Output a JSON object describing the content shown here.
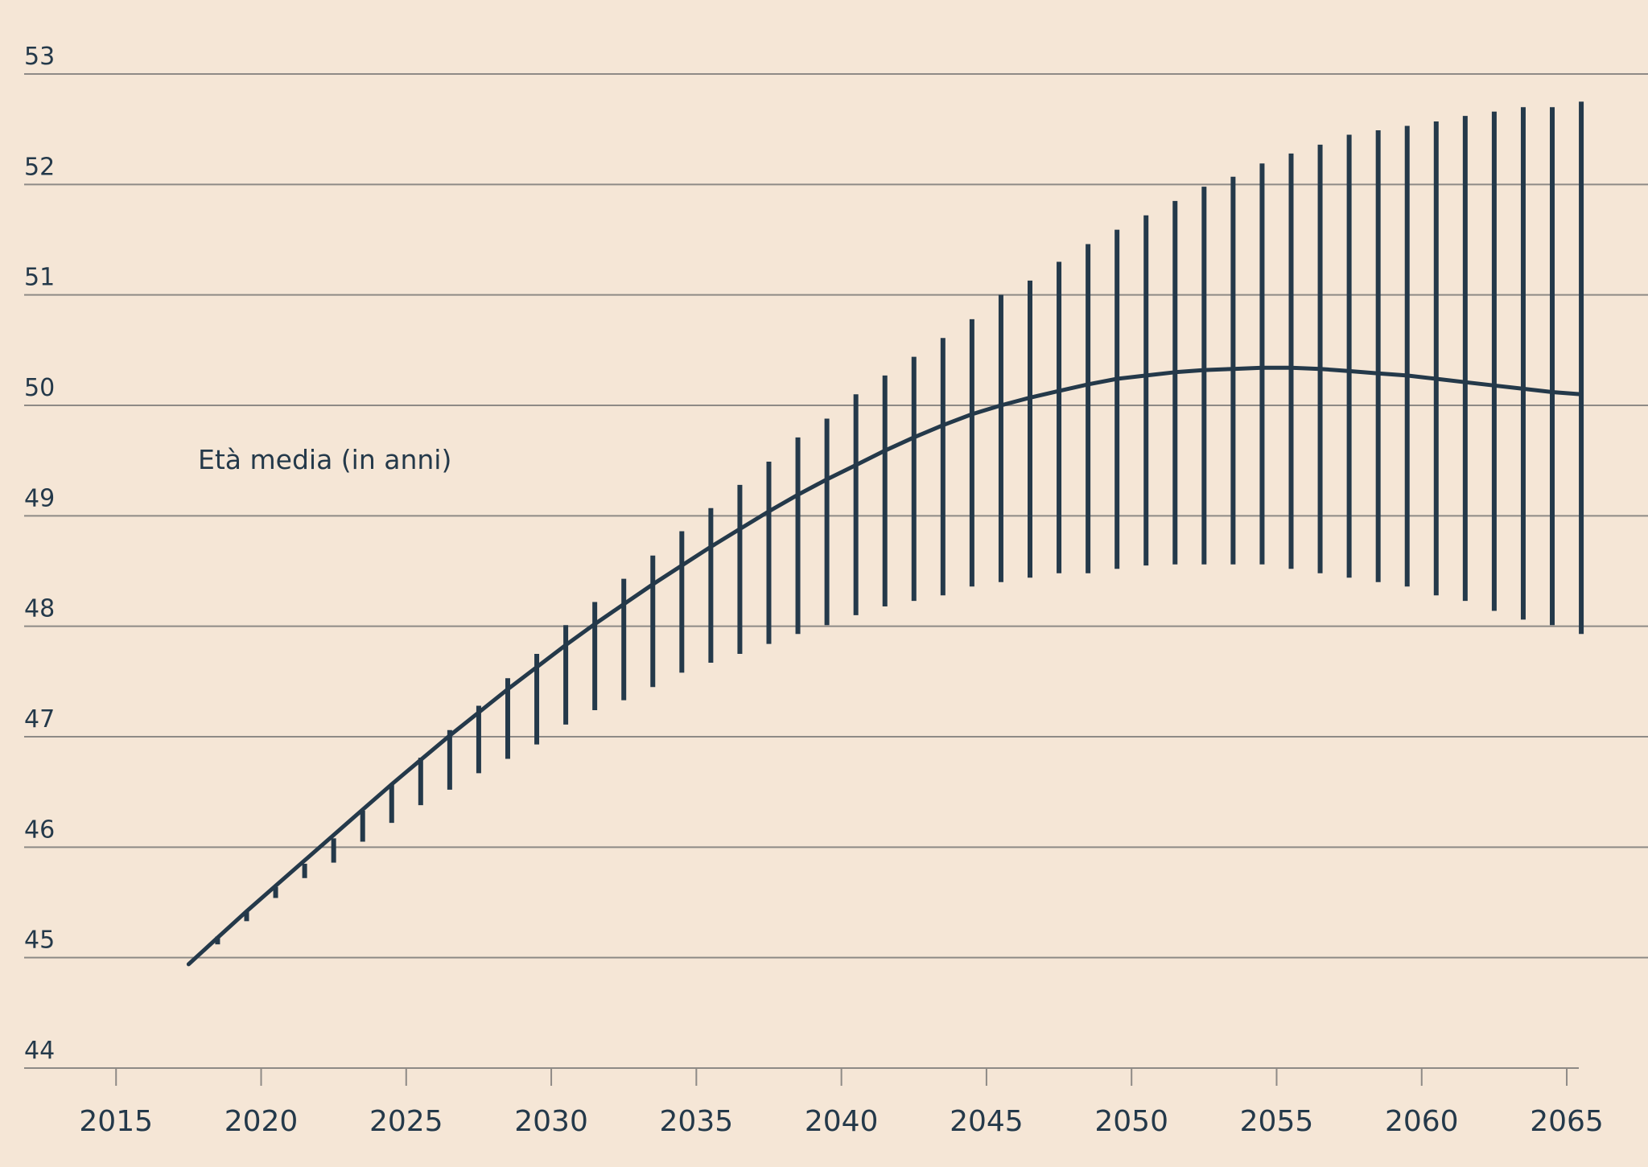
{
  "chart_data": {
    "type": "line",
    "annotation": "Età media (in anni)",
    "y_ticks": [
      "44",
      "45",
      "46",
      "47",
      "48",
      "49",
      "50",
      "51",
      "52",
      "53"
    ],
    "x_ticks": [
      "2015",
      "2020",
      "2025",
      "2030",
      "2035",
      "2040",
      "2045",
      "2050",
      "2055",
      "2060",
      "2065"
    ],
    "ylim": [
      44,
      53
    ],
    "xlim": [
      2011,
      2067.8
    ],
    "grid": true,
    "colors": {
      "background": "#f5e6d6",
      "series": "#24394a",
      "grid": "#8e8a86"
    },
    "series": [
      {
        "x": [
          2017.5,
          2018.5,
          2019.5,
          2020.5,
          2021.5,
          2022.5,
          2023.5,
          2024.5,
          2025.5,
          2026.5,
          2027.5,
          2028.5,
          2029.5,
          2030.5,
          2031.5,
          2032.5,
          2033.5,
          2034.5,
          2035.5,
          2036.5,
          2037.5,
          2038.5,
          2039.5,
          2040.5,
          2041.5,
          2042.5,
          2043.5,
          2044.5,
          2045.5,
          2046.5,
          2047.5,
          2048.5,
          2049.5,
          2050.5,
          2051.5,
          2052.5,
          2053.5,
          2054.5,
          2055.5,
          2056.5,
          2057.5,
          2058.5,
          2059.5,
          2060.5,
          2061.5,
          2062.5,
          2063.5,
          2064.5,
          2065.5
        ],
        "y": [
          44.94,
          45.18,
          45.42,
          45.65,
          45.88,
          46.11,
          46.34,
          46.57,
          46.79,
          47.01,
          47.22,
          47.43,
          47.63,
          47.83,
          48.02,
          48.2,
          48.38,
          48.55,
          48.72,
          48.88,
          49.04,
          49.19,
          49.33,
          49.46,
          49.59,
          49.71,
          49.82,
          49.92,
          50.0,
          50.07,
          50.13,
          50.19,
          50.24,
          50.27,
          50.3,
          50.32,
          50.33,
          50.34,
          50.34,
          50.33,
          50.31,
          50.29,
          50.27,
          50.24,
          50.21,
          50.18,
          50.15,
          50.12,
          50.1
        ]
      }
    ],
    "intervals": {
      "x": [
        2018.5,
        2019.5,
        2020.5,
        2021.5,
        2022.5,
        2023.5,
        2024.5,
        2025.5,
        2026.5,
        2027.5,
        2028.5,
        2029.5,
        2030.5,
        2031.5,
        2032.5,
        2033.5,
        2034.5,
        2035.5,
        2036.5,
        2037.5,
        2038.5,
        2039.5,
        2040.5,
        2041.5,
        2042.5,
        2043.5,
        2044.5,
        2045.5,
        2046.5,
        2047.5,
        2048.5,
        2049.5,
        2050.5,
        2051.5,
        2052.5,
        2053.5,
        2054.5,
        2055.5,
        2056.5,
        2057.5,
        2058.5,
        2059.5,
        2060.5,
        2061.5,
        2062.5,
        2063.5,
        2064.5,
        2065.5
      ],
      "low": [
        45.12,
        45.33,
        45.54,
        45.72,
        45.86,
        46.05,
        46.22,
        46.38,
        46.52,
        46.67,
        46.8,
        46.93,
        47.11,
        47.24,
        47.33,
        47.45,
        47.58,
        47.67,
        47.75,
        47.84,
        47.93,
        48.01,
        48.1,
        48.18,
        48.23,
        48.28,
        48.36,
        48.4,
        48.44,
        48.48,
        48.48,
        48.52,
        48.55,
        48.56,
        48.56,
        48.56,
        48.56,
        48.52,
        48.48,
        48.44,
        48.4,
        48.36,
        48.28,
        48.23,
        48.14,
        48.06,
        48.01,
        47.93
      ],
      "high": [
        45.19,
        45.42,
        45.64,
        45.85,
        46.08,
        46.33,
        46.57,
        46.81,
        47.06,
        47.28,
        47.53,
        47.75,
        48.01,
        48.22,
        48.43,
        48.64,
        48.86,
        49.07,
        49.28,
        49.49,
        49.71,
        49.88,
        50.1,
        50.27,
        50.44,
        50.61,
        50.78,
        51.0,
        51.13,
        51.3,
        51.46,
        51.59,
        51.72,
        51.85,
        51.98,
        52.07,
        52.19,
        52.28,
        52.36,
        52.45,
        52.49,
        52.53,
        52.57,
        52.62,
        52.66,
        52.7,
        52.7,
        52.75
      ]
    }
  }
}
